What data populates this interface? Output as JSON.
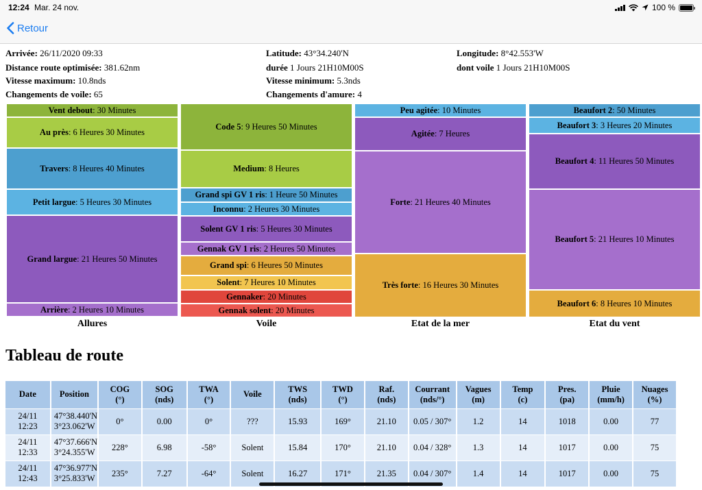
{
  "status": {
    "time": "12:24",
    "date": "Mar. 24 nov.",
    "battery": "100 %"
  },
  "nav": {
    "back_label": "Retour"
  },
  "info": {
    "arrivee_label": "Arrivée:",
    "arrivee": "26/11/2020 09:33",
    "latitude_label": "Latitude:",
    "latitude": "43°34.240'N",
    "longitude_label": "Longitude:",
    "longitude": "8°42.553'W",
    "distance_label": "Distance route optimisée:",
    "distance": "381.62nm",
    "duree_label": "durée",
    "duree": "1 Jours 21H10M00S",
    "voile_label": "dont voile",
    "voile": "1 Jours 21H10M00S",
    "vmax_label": "Vitesse maximum:",
    "vmax": "10.8nds",
    "vmin_label": "Vitesse minimum:",
    "vmin": "5.3nds",
    "chg_voile_label": "Changements de voile:",
    "chg_voile": "65",
    "chg_amure_label": "Changements d'amure:",
    "chg_amure": "4"
  },
  "treemap": [
    {
      "title": "Allures",
      "blocks": [
        {
          "name": "Vent debout",
          "value": " : 30 Minutes",
          "color": "#8db43b"
        },
        {
          "name": "Au près",
          "value": " : 6 Heures 30 Minutes",
          "color": "#a8cc45"
        },
        {
          "name": "Travers",
          "value": " : 8 Heures 40 Minutes",
          "color": "#4d9fcf"
        },
        {
          "name": "Petit largue",
          "value": " : 5 Heures 30 Minutes",
          "color": "#5cb3e2"
        },
        {
          "name": "Grand largue",
          "value": " : 21 Heures 50 Minutes",
          "color": "#8d5abd"
        },
        {
          "name": "Arrière",
          "value": " : 2 Heures 10 Minutes",
          "color": "#a56fcc"
        }
      ]
    },
    {
      "title": "Voile",
      "blocks": [
        {
          "name": "Code 5",
          "value": " : 9 Heures 50 Minutes",
          "color": "#8db43b"
        },
        {
          "name": "Medium",
          "value": " : 8 Heures",
          "color": "#a8cc45"
        },
        {
          "name": "Grand spi GV 1 ris",
          "value": " : 1 Heure 50 Minutes",
          "color": "#4d9fcf"
        },
        {
          "name": "Inconnu",
          "value": " : 2 Heures 30 Minutes",
          "color": "#5cb3e2"
        },
        {
          "name": "Solent GV 1 ris",
          "value": " : 5 Heures 30 Minutes",
          "color": "#8d5abd"
        },
        {
          "name": "Gennak GV 1 ris",
          "value": " : 2 Heures 50 Minutes",
          "color": "#a56fcc"
        },
        {
          "name": "Grand spi",
          "value": " : 6 Heures 50 Minutes",
          "color": "#e4ac3e"
        },
        {
          "name": "Solent",
          "value": " : 7 Heures 10 Minutes",
          "color": "#f2c54f"
        },
        {
          "name": "Gennaker",
          "value": " : 20 Minutes",
          "color": "#e0463c"
        },
        {
          "name": "Gennak solent",
          "value": " : 20 Minutes",
          "color": "#ec5850"
        }
      ]
    },
    {
      "title": "Etat de la mer",
      "blocks": [
        {
          "name": "Peu agitée",
          "value": " : 10 Minutes",
          "color": "#5cb3e2"
        },
        {
          "name": "Agitée",
          "value": " : 7 Heures",
          "color": "#8d5abd"
        },
        {
          "name": "Forte",
          "value": " : 21 Heures 40 Minutes",
          "color": "#a56fcc"
        },
        {
          "name": "Très forte",
          "value": " : 16 Heures 30 Minutes",
          "color": "#e4ac3e"
        }
      ]
    },
    {
      "title": "Etat du vent",
      "blocks": [
        {
          "name": "Beaufort 2",
          "value": " : 50 Minutes",
          "color": "#4d9fcf"
        },
        {
          "name": "Beaufort 3",
          "value": " : 3 Heures 20 Minutes",
          "color": "#5cb3e2"
        },
        {
          "name": "Beaufort 4",
          "value": " : 11 Heures 50 Minutes",
          "color": "#8d5abd"
        },
        {
          "name": "Beaufort 5",
          "value": " : 21 Heures 10 Minutes",
          "color": "#a56fcc"
        },
        {
          "name": "Beaufort 6",
          "value": " : 8 Heures 10 Minutes",
          "color": "#e4ac3e"
        }
      ]
    }
  ],
  "table": {
    "title": "Tableau de route",
    "headers": [
      [
        "Date",
        ""
      ],
      [
        "Position",
        ""
      ],
      [
        "COG",
        "(°)"
      ],
      [
        "SOG",
        "(nds)"
      ],
      [
        "TWA",
        "(°)"
      ],
      [
        "Voile",
        ""
      ],
      [
        "TWS",
        "(nds)"
      ],
      [
        "TWD",
        "(°)"
      ],
      [
        "Raf.",
        "(nds)"
      ],
      [
        "Courrant",
        "(nds/°)"
      ],
      [
        "Vagues",
        "(m)"
      ],
      [
        "Temp",
        "(c)"
      ],
      [
        "Pres.",
        "(pa)"
      ],
      [
        "Pluie",
        "(mm/h)"
      ],
      [
        "Nuages",
        "(%)"
      ]
    ],
    "rows": [
      {
        "date": [
          "24/11",
          "12:23"
        ],
        "pos": [
          "47°38.440'N",
          "3°23.062'W"
        ],
        "cog": "0°",
        "sog": "0.00",
        "twa": "0°",
        "voile": "???",
        "tws": "15.93",
        "twd": "169°",
        "raf": "21.10",
        "courant": "0.05 / 307°",
        "vagues": "1.2",
        "temp": "14",
        "pres": "1018",
        "pluie": "0.00",
        "nuages": "77"
      },
      {
        "date": [
          "24/11",
          "12:33"
        ],
        "pos": [
          "47°37.666'N",
          "3°24.355'W"
        ],
        "cog": "228°",
        "sog": "6.98",
        "twa": "-58°",
        "voile": "Solent",
        "tws": "15.84",
        "twd": "170°",
        "raf": "21.10",
        "courant": "0.04 / 328°",
        "vagues": "1.3",
        "temp": "14",
        "pres": "1017",
        "pluie": "0.00",
        "nuages": "75"
      },
      {
        "date": [
          "24/11",
          "12:43"
        ],
        "pos": [
          "47°36.977'N",
          "3°25.833'W"
        ],
        "cog": "235°",
        "sog": "7.27",
        "twa": "-64°",
        "voile": "Solent",
        "tws": "16.27",
        "twd": "171°",
        "raf": "21.35",
        "courant": "0.04 / 307°",
        "vagues": "1.4",
        "temp": "14",
        "pres": "1017",
        "pluie": "0.00",
        "nuages": "75"
      }
    ]
  }
}
